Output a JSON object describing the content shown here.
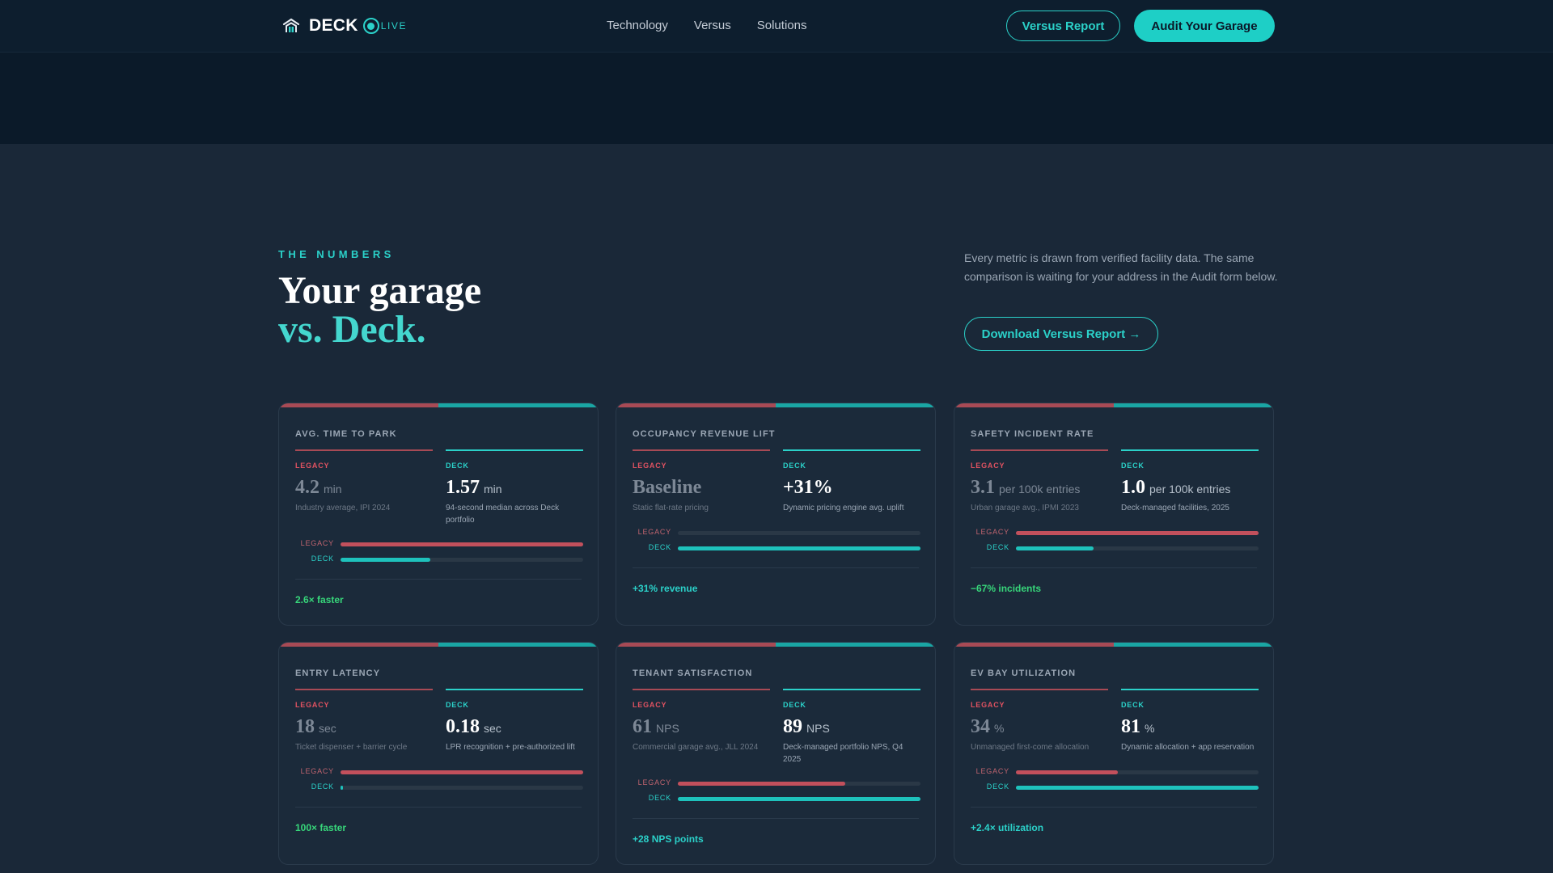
{
  "nav": {
    "brand": "DECK",
    "live_label": "LIVE",
    "links": [
      "Technology",
      "Versus",
      "Solutions"
    ],
    "versus_report_label": "Versus Report",
    "audit_label": "Audit Your Garage"
  },
  "intro": {
    "eyebrow": "THE NUMBERS",
    "headline_line1": "Your garage",
    "headline_line2": "vs. Deck.",
    "description": "Every metric is drawn from verified facility data. The same comparison is waiting for your address in the Audit form below.",
    "download_label": "Download Versus Report →"
  },
  "colors": {
    "accent": "#2bd1c9",
    "legacy": "#a84a55",
    "positive": "#37d67a"
  },
  "cards": [
    {
      "label": "AVG. TIME TO PARK",
      "legacy": {
        "tag": "LEGACY",
        "value": "4.2",
        "unit": "min",
        "note": "Industry average, IPI 2024"
      },
      "deck": {
        "tag": "DECK",
        "value": "1.57",
        "unit": "min",
        "note": "94-second median across Deck portfolio"
      },
      "bars": {
        "legacy_label": "LEGACY",
        "deck_label": "DECK",
        "legacy_fraction": 1.0,
        "deck_fraction": 0.37
      },
      "summary": "2.6× faster",
      "summary_color": "#37d67a"
    },
    {
      "label": "OCCUPANCY REVENUE LIFT",
      "legacy": {
        "tag": "LEGACY",
        "value": "Baseline",
        "unit": "",
        "note": "Static flat-rate pricing"
      },
      "deck": {
        "tag": "DECK",
        "value": "+31%",
        "unit": "",
        "note": "Dynamic pricing engine avg. uplift"
      },
      "bars": {
        "legacy_label": "LEGACY",
        "deck_label": "DECK",
        "legacy_fraction": 0.0,
        "deck_fraction": 1.0
      },
      "summary": "+31% revenue",
      "summary_color": "#2bd1c9"
    },
    {
      "label": "SAFETY INCIDENT RATE",
      "legacy": {
        "tag": "LEGACY",
        "value": "3.1",
        "unit": "per 100k entries",
        "note": "Urban garage avg., IPMI 2023"
      },
      "deck": {
        "tag": "DECK",
        "value": "1.0",
        "unit": "per 100k entries",
        "note": "Deck-managed facilities, 2025"
      },
      "bars": {
        "legacy_label": "LEGACY",
        "deck_label": "DECK",
        "legacy_fraction": 1.0,
        "deck_fraction": 0.32
      },
      "summary": "−67% incidents",
      "summary_color": "#37d67a"
    },
    {
      "label": "ENTRY LATENCY",
      "legacy": {
        "tag": "LEGACY",
        "value": "18",
        "unit": "sec",
        "note": "Ticket dispenser + barrier cycle"
      },
      "deck": {
        "tag": "DECK",
        "value": "0.18",
        "unit": "sec",
        "note": "LPR recognition + pre-authorized lift"
      },
      "bars": {
        "legacy_label": "LEGACY",
        "deck_label": "DECK",
        "legacy_fraction": 1.0,
        "deck_fraction": 0.01
      },
      "summary": "100× faster",
      "summary_color": "#37d67a"
    },
    {
      "label": "TENANT SATISFACTION",
      "legacy": {
        "tag": "LEGACY",
        "value": "61",
        "unit": "NPS",
        "note": "Commercial garage avg., JLL 2024"
      },
      "deck": {
        "tag": "DECK",
        "value": "89",
        "unit": "NPS",
        "note": "Deck-managed portfolio NPS, Q4 2025"
      },
      "bars": {
        "legacy_label": "LEGACY",
        "deck_label": "DECK",
        "legacy_fraction": 0.69,
        "deck_fraction": 1.0
      },
      "summary": "+28 NPS points",
      "summary_color": "#2bd1c9"
    },
    {
      "label": "EV BAY UTILIZATION",
      "legacy": {
        "tag": "LEGACY",
        "value": "34",
        "unit": "%",
        "note": "Unmanaged first-come allocation"
      },
      "deck": {
        "tag": "DECK",
        "value": "81",
        "unit": "%",
        "note": "Dynamic allocation + app reservation"
      },
      "bars": {
        "legacy_label": "LEGACY",
        "deck_label": "DECK",
        "legacy_fraction": 0.42,
        "deck_fraction": 1.0
      },
      "summary": "+2.4× utilization",
      "summary_color": "#2bd1c9"
    }
  ]
}
